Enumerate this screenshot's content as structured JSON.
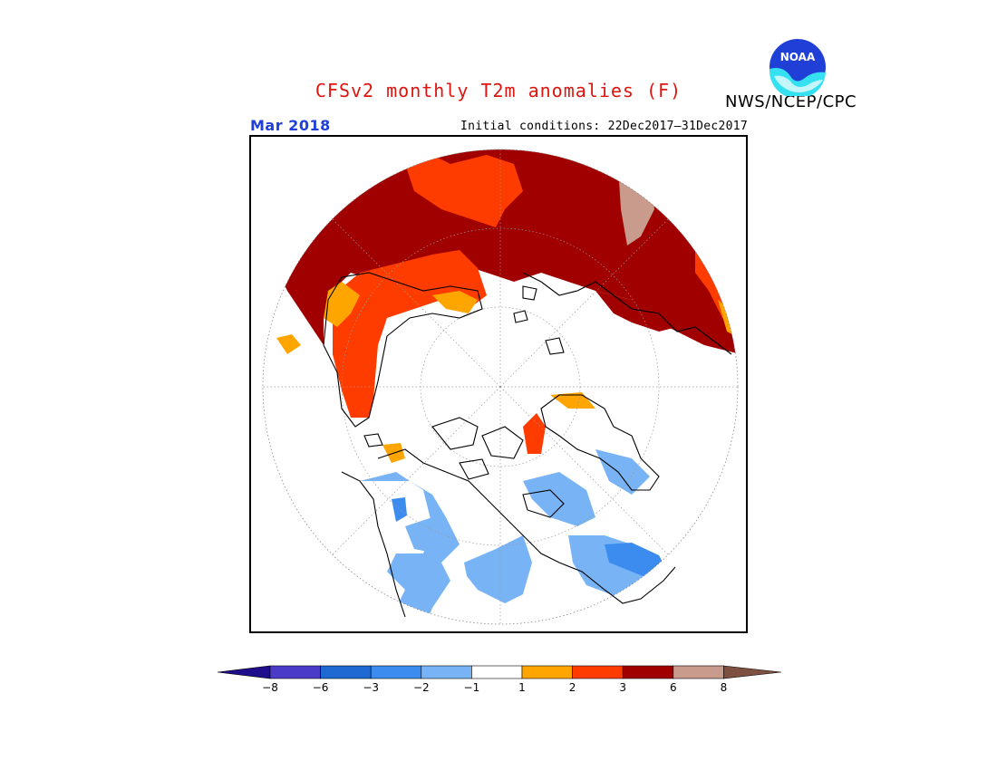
{
  "header": {
    "title": "CFSv2 monthly T2m anomalies (F)",
    "organization": "NWS/NCEP/CPC",
    "logo_text": "NOAA",
    "month": "Mar 2018",
    "initial_conditions": "Initial conditions: 22Dec2017–31Dec2017"
  },
  "legend": {
    "tick_labels": [
      "−8",
      "−6",
      "−3",
      "−2",
      "−1",
      "1",
      "2",
      "3",
      "6",
      "8"
    ],
    "colors": [
      "#1e0e8c",
      "#4b3cc8",
      "#1e6ad2",
      "#3c8cf0",
      "#78b4f5",
      "#ffffff",
      "#ffa500",
      "#ff3c00",
      "#a00000",
      "#c89b8c",
      "#7d5041"
    ]
  },
  "map": {
    "projection": "north-polar-stereographic",
    "anomaly_colors": {
      "warm_strong": "#a00000",
      "warm_mid": "#ff3c00",
      "warm_light": "#ffa500",
      "warm_extreme": "#c89b8c",
      "cool_light": "#78b4f5",
      "cool_mid": "#3c8cf0",
      "cool_strong": "#1e6ad2"
    }
  }
}
